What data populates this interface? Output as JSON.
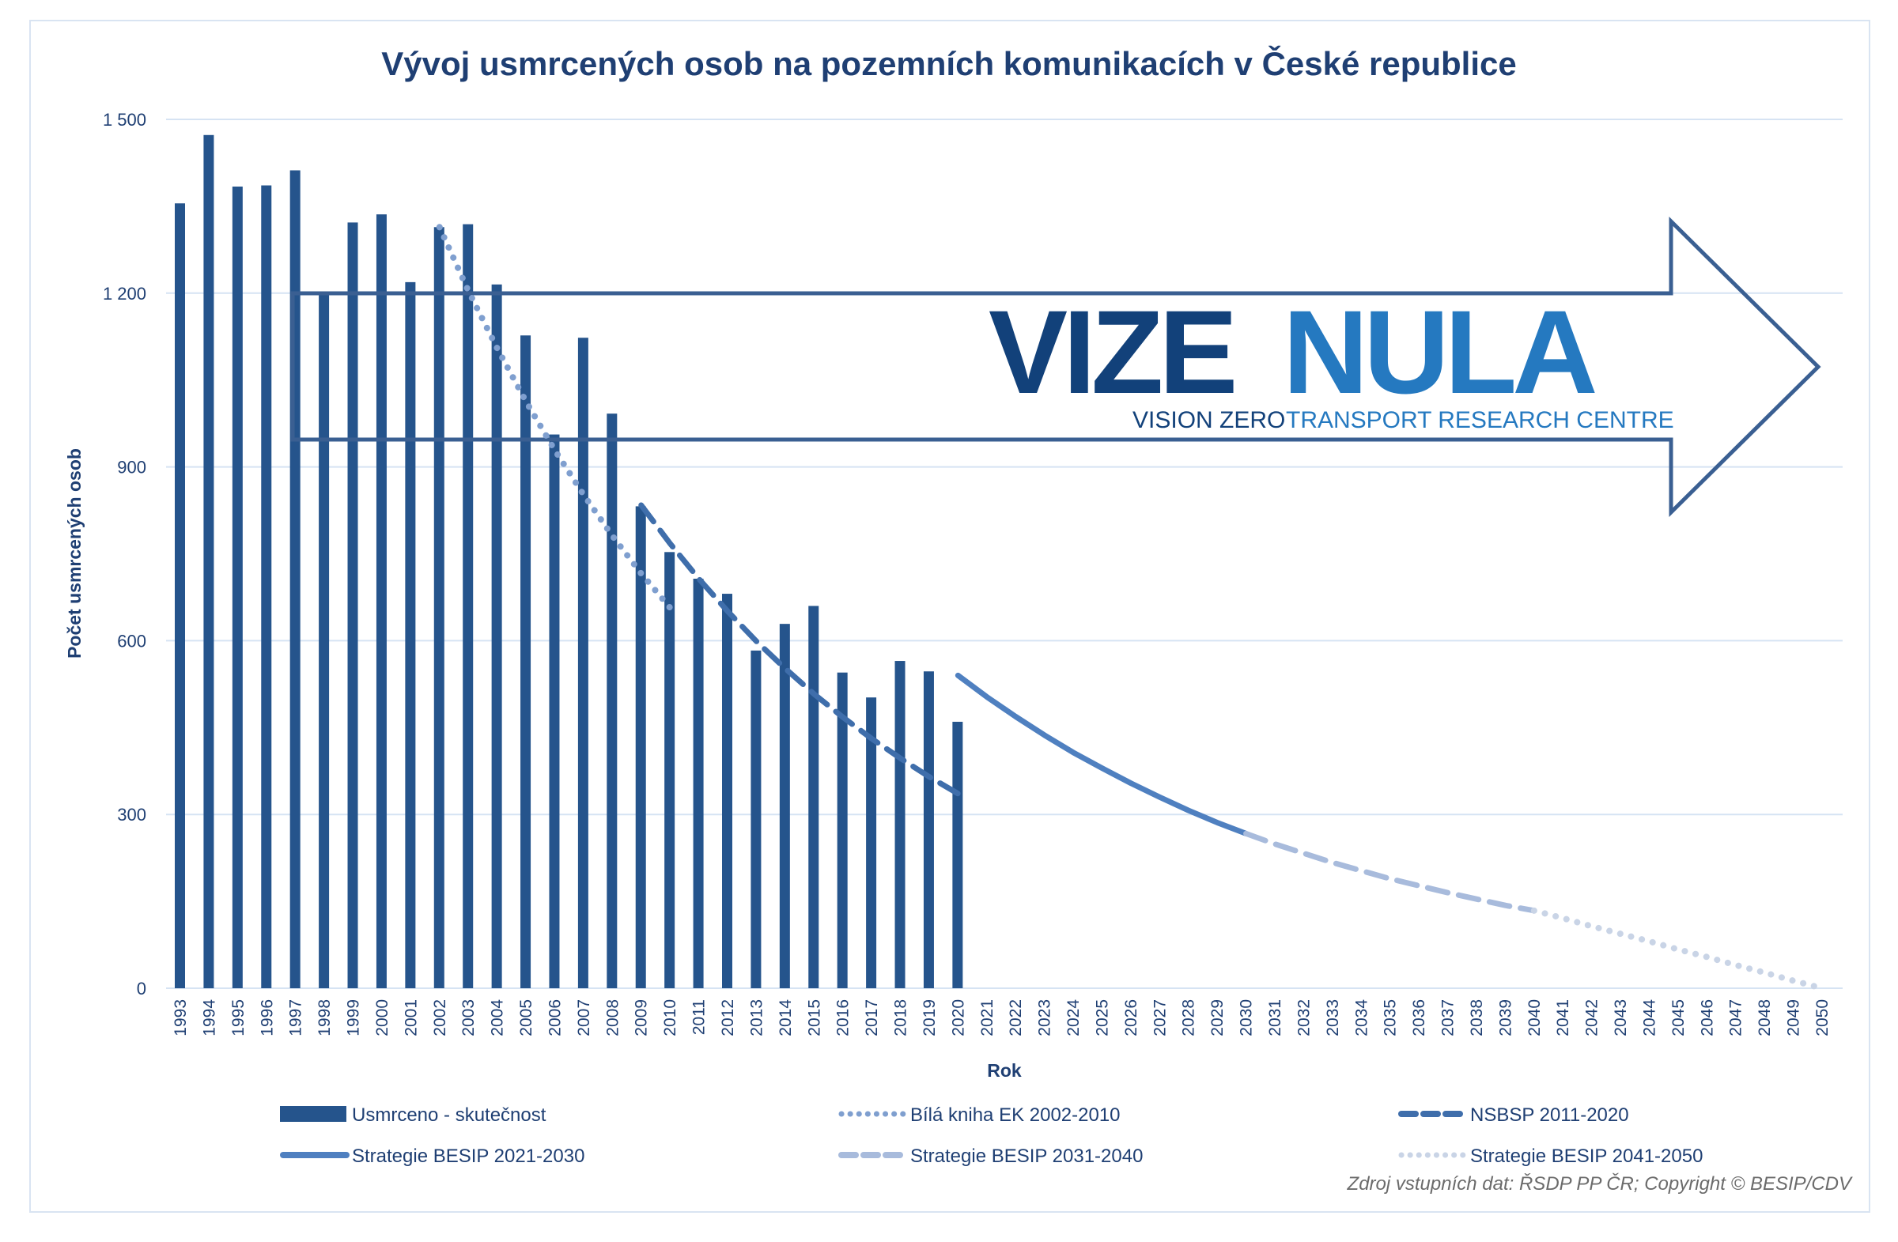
{
  "chart_data": {
    "type": "bar",
    "title": "Vývoj usmrcených osob na pozemních komunikacích v České republice",
    "xlabel": "Rok",
    "ylabel": "Počet usmrcených osob",
    "ylim": [
      0,
      1500
    ],
    "yticks": [
      "0",
      "300",
      "600",
      "900",
      "1 200",
      "1 500"
    ],
    "ytick_values": [
      0,
      300,
      600,
      900,
      1200,
      1500
    ],
    "grid": true,
    "legend_position": "bottom",
    "categories": [
      "1993",
      "1994",
      "1995",
      "1996",
      "1997",
      "1998",
      "1999",
      "2000",
      "2001",
      "2002",
      "2003",
      "2004",
      "2005",
      "2006",
      "2007",
      "2008",
      "2009",
      "2010",
      "2011",
      "2012",
      "2013",
      "2014",
      "2015",
      "2016",
      "2017",
      "2018",
      "2019",
      "2020",
      "2021",
      "2022",
      "2023",
      "2024",
      "2025",
      "2026",
      "2027",
      "2028",
      "2029",
      "2030",
      "2031",
      "2032",
      "2033",
      "2034",
      "2035",
      "2036",
      "2037",
      "2038",
      "2039",
      "2040",
      "2041",
      "2042",
      "2043",
      "2044",
      "2045",
      "2046",
      "2047",
      "2048",
      "2049",
      "2050"
    ],
    "series": [
      {
        "name": "Usmrceno - skutečnost",
        "kind": "bar",
        "color": "#25548c",
        "x": [
          1993,
          1994,
          1995,
          1996,
          1997,
          1998,
          1999,
          2000,
          2001,
          2002,
          2003,
          2004,
          2005,
          2006,
          2007,
          2008,
          2009,
          2010,
          2011,
          2012,
          2013,
          2014,
          2015,
          2016,
          2017,
          2018,
          2019,
          2020
        ],
        "values": [
          1355,
          1473,
          1384,
          1386,
          1412,
          1202,
          1322,
          1336,
          1219,
          1314,
          1319,
          1215,
          1127,
          956,
          1123,
          992,
          832,
          753,
          707,
          681,
          583,
          629,
          660,
          545,
          502,
          565,
          547,
          460
        ]
      },
      {
        "name": "Bílá kniha EK 2002-2010",
        "kind": "line",
        "style": "dotted",
        "color": "#7f9fcf",
        "x": [
          2002,
          2003,
          2004,
          2005,
          2006,
          2007,
          2008,
          2009,
          2010
        ],
        "values": [
          1314,
          1204,
          1105,
          1013,
          929,
          852,
          781,
          716,
          657
        ]
      },
      {
        "name": "NSBSP 2011-2020",
        "kind": "line",
        "style": "dashed",
        "color": "#3f6eab",
        "x": [
          2009,
          2010,
          2011,
          2012,
          2013,
          2014,
          2015,
          2016,
          2017,
          2018,
          2019,
          2020
        ],
        "values": [
          834,
          768,
          707,
          651,
          599,
          552,
          508,
          468,
          431,
          397,
          365,
          336
        ]
      },
      {
        "name": "Strategie BESIP 2021-2030",
        "kind": "line",
        "style": "solid",
        "color": "#4f80c0",
        "x": [
          2020,
          2021,
          2022,
          2023,
          2024,
          2025,
          2026,
          2027,
          2028,
          2029,
          2030
        ],
        "values": [
          540,
          503,
          469,
          437,
          407,
          380,
          354,
          330,
          307,
          286,
          267
        ]
      },
      {
        "name": "Strategie BESIP 2031-2040",
        "kind": "line",
        "style": "dashed",
        "color": "#a8bbdc",
        "x": [
          2030,
          2031,
          2032,
          2033,
          2034,
          2035,
          2036,
          2037,
          2038,
          2039,
          2040
        ],
        "values": [
          267,
          249,
          233,
          217,
          203,
          189,
          177,
          165,
          154,
          143,
          134
        ]
      },
      {
        "name": "Strategie BESIP 2041-2050",
        "kind": "line",
        "style": "dotted",
        "color": "#c9d4e6",
        "x": [
          2040,
          2041,
          2042,
          2043,
          2044,
          2045,
          2046,
          2047,
          2048,
          2049,
          2050
        ],
        "values": [
          134,
          121,
          107,
          94,
          81,
          67,
          54,
          40,
          27,
          13,
          0
        ]
      }
    ],
    "source": "Zdroj vstupních dat: ŘSDP PP ČR; Copyright © BESIP/CDV"
  },
  "logo": {
    "word1": "VIZE",
    "word2": "NULA",
    "sub1": "VISION ZERO",
    "sub2": "TRANSPORT RESEARCH CENTRE",
    "color1": "#12417a",
    "color2": "#2579c0"
  }
}
